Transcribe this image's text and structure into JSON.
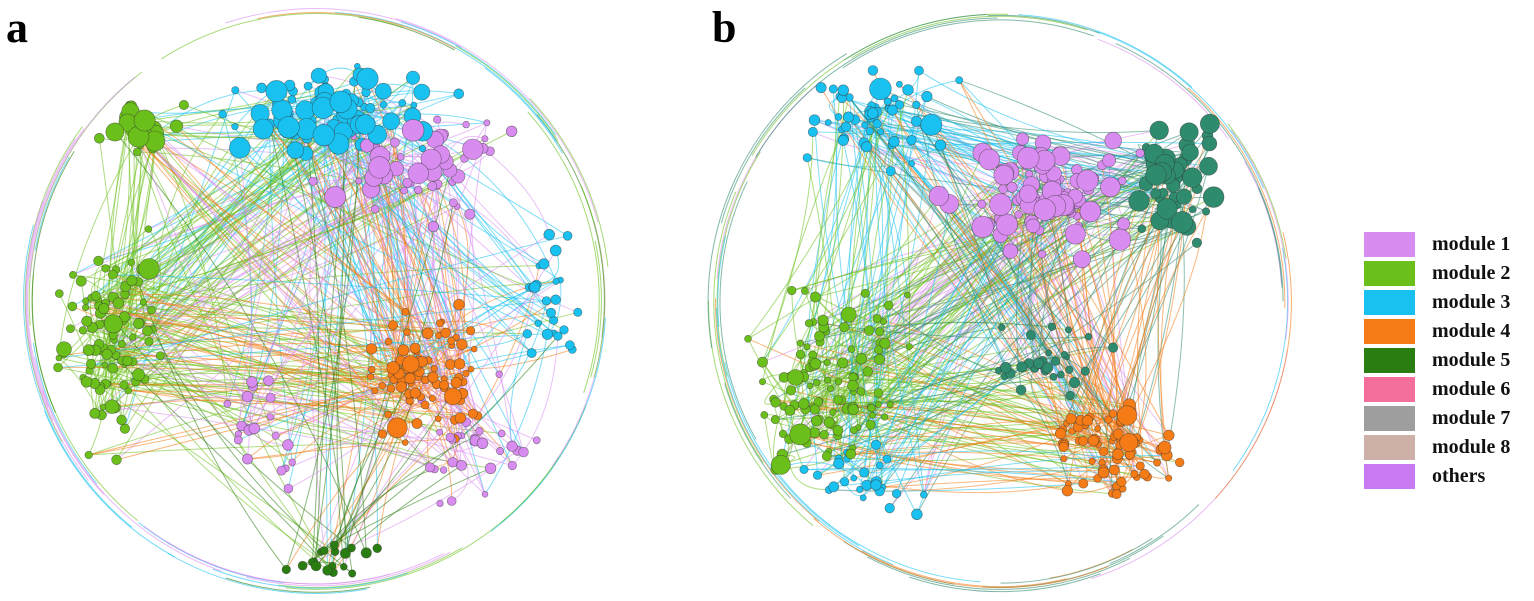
{
  "panels": [
    {
      "id": "a",
      "label": "a"
    },
    {
      "id": "b",
      "label": "b"
    }
  ],
  "legend": [
    {
      "label": "module 1",
      "color": "#D98CF0"
    },
    {
      "label": "module 2",
      "color": "#6BBF1A"
    },
    {
      "label": "module 3",
      "color": "#18C1F0"
    },
    {
      "label": "module 4",
      "color": "#F47B16"
    },
    {
      "label": "module 5",
      "color": "#2A7D10"
    },
    {
      "label": "module 6",
      "color": "#F46E9C"
    },
    {
      "label": "module 7",
      "color": "#9E9E9E"
    },
    {
      "label": "module 8",
      "color": "#CDB0A8"
    },
    {
      "label": "others",
      "color": "#C97AF2"
    }
  ],
  "network_colors": {
    "module1": "#D98CF0",
    "module2": "#6BBF1A",
    "module3": "#18C1F0",
    "module4": "#F47B16",
    "module5": "#2A7D10",
    "teal": "#2E8B6E",
    "pink": "#F46E9C"
  }
}
